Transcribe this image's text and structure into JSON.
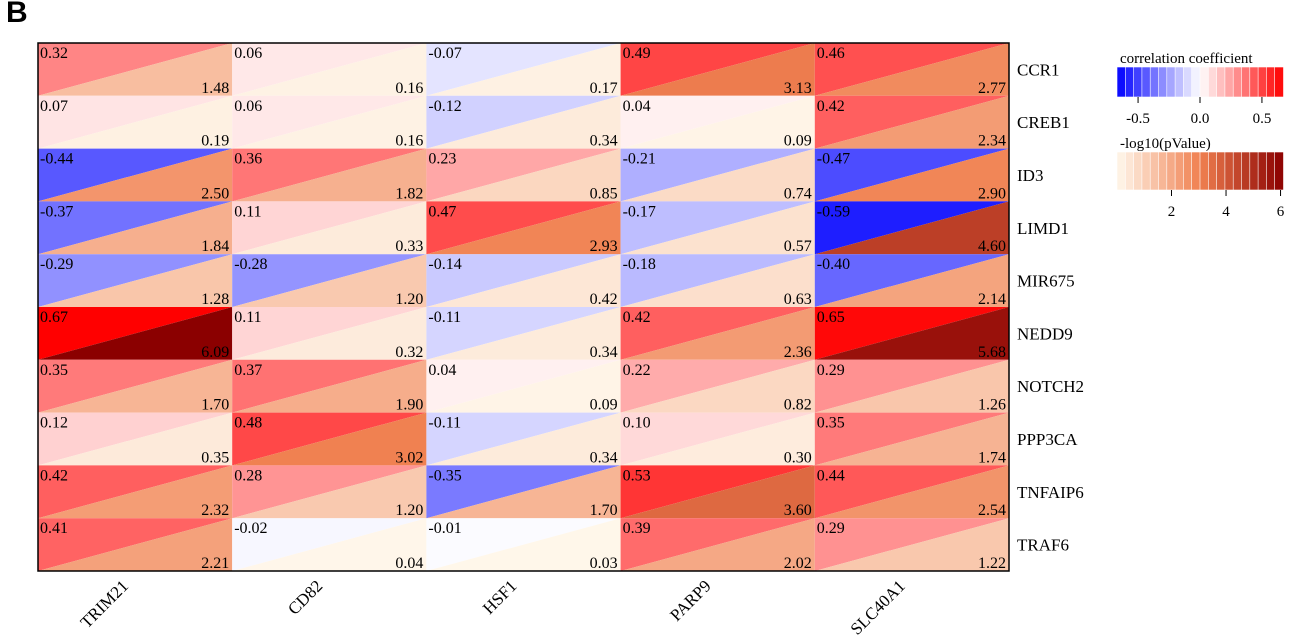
{
  "panel_label": "B",
  "chart_data": {
    "type": "heatmap",
    "columns": [
      "TRIM21",
      "CD82",
      "HSF1",
      "PARP9",
      "SLC40A1"
    ],
    "rows": [
      "CCR1",
      "CREB1",
      "ID3",
      "LIMD1",
      "MIR675",
      "NEDD9",
      "NOTCH2",
      "PPP3CA",
      "TNFAIP6",
      "TRAF6"
    ],
    "correlation": [
      [
        "0.32",
        "0.06",
        "-0.07",
        "0.49",
        "0.46"
      ],
      [
        "0.07",
        "0.06",
        "-0.12",
        "0.04",
        "0.42"
      ],
      [
        "-0.44",
        "0.36",
        "0.23",
        "-0.21",
        "-0.47"
      ],
      [
        "-0.37",
        "0.11",
        "0.47",
        "-0.17",
        "-0.59"
      ],
      [
        "-0.29",
        "-0.28",
        "-0.14",
        "-0.18",
        "-0.40"
      ],
      [
        "0.67",
        "0.11",
        "-0.11",
        "0.42",
        "0.65"
      ],
      [
        "0.35",
        "0.37",
        "0.04",
        "0.22",
        "0.29"
      ],
      [
        "0.12",
        "0.48",
        "-0.11",
        "0.10",
        "0.35"
      ],
      [
        "0.42",
        "0.28",
        "-0.35",
        "0.53",
        "0.44"
      ],
      [
        "0.41",
        "-0.02",
        "-0.01",
        "0.39",
        "0.29"
      ]
    ],
    "neg_log10_pvalue": [
      [
        "1.48",
        "0.16",
        "0.17",
        "3.13",
        "2.77"
      ],
      [
        "0.19",
        "0.16",
        "0.34",
        "0.09",
        "2.34"
      ],
      [
        "2.50",
        "1.82",
        "0.85",
        "0.74",
        "2.90"
      ],
      [
        "1.84",
        "0.33",
        "2.93",
        "0.57",
        "4.60"
      ],
      [
        "1.28",
        "1.20",
        "0.42",
        "0.63",
        "2.14"
      ],
      [
        "6.09",
        "0.32",
        "0.34",
        "2.36",
        "5.68"
      ],
      [
        "1.70",
        "1.90",
        "0.09",
        "0.82",
        "1.26"
      ],
      [
        "0.35",
        "3.02",
        "0.34",
        "0.30",
        "1.74"
      ],
      [
        "2.32",
        "1.20",
        "1.70",
        "3.60",
        "2.54"
      ],
      [
        "2.21",
        "0.04",
        "0.03",
        "2.02",
        "1.22"
      ]
    ],
    "legend_correlation": {
      "title": "correlation coefficient",
      "range": [
        -0.67,
        0.67
      ],
      "ticks": [
        -0.5,
        0.0,
        0.5
      ],
      "tick_labels": [
        "-0.5",
        "0.0",
        "0.5"
      ],
      "colors": {
        "low": "#0000ff",
        "mid": "#ffffff",
        "high": "#ff0000"
      }
    },
    "legend_pvalue": {
      "title": "-log10(pValue)",
      "range": [
        0,
        6.09
      ],
      "ticks": [
        2,
        4,
        6
      ],
      "tick_labels": [
        "2",
        "4",
        "6"
      ],
      "colors": {
        "low": "#fff8ec",
        "mid": "#f08050",
        "high": "#8b0000"
      }
    }
  }
}
